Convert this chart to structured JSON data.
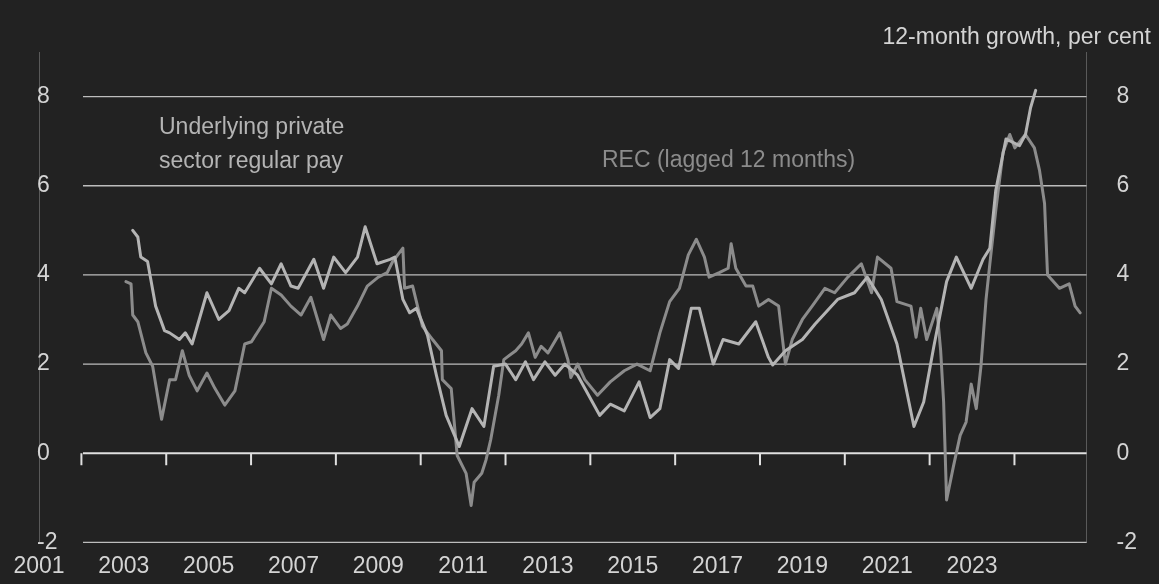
{
  "chart_data": {
    "type": "line",
    "y2label": "12-month growth, per cent",
    "xlim": [
      2001,
      2025.7
    ],
    "ylim": [
      -2,
      9
    ],
    "yticks": [
      -2,
      0,
      2,
      4,
      6,
      8
    ],
    "y2lim": [
      -2,
      9
    ],
    "y2ticks": [
      -2,
      0,
      2,
      4,
      6,
      8
    ],
    "xticks": [
      2001,
      {
        "value": 2002,
        "label": null
      },
      2003,
      {
        "value": 2004,
        "label": null
      },
      2005,
      {
        "value": 2006,
        "label": null
      },
      2007,
      {
        "value": 2008,
        "label": null
      },
      2009,
      {
        "value": 2010,
        "label": null
      },
      2011,
      {
        "value": 2012,
        "label": null
      },
      2013,
      {
        "value": 2014,
        "label": null
      },
      2015,
      {
        "value": 2016,
        "label": null
      },
      2017,
      {
        "value": 2018,
        "label": null
      },
      2019,
      {
        "value": 2020,
        "label": null
      },
      2021,
      {
        "value": 2022,
        "label": null
      },
      2023,
      {
        "value": 2024,
        "label": null
      }
    ],
    "grid": "y",
    "marker": "none",
    "line_style": "solid",
    "series": [
      {
        "name": "Underlying private sector regular pay",
        "color": "#b4b4b4",
        "x": [
          2003.21,
          2003.33,
          2003.4,
          2003.56,
          2003.75,
          2003.96,
          2004.08,
          2004.31,
          2004.45,
          2004.61,
          2004.96,
          2005.24,
          2005.48,
          2005.71,
          2005.85,
          2006.2,
          2006.48,
          2006.71,
          2006.94,
          2007.11,
          2007.48,
          2007.71,
          2007.95,
          2008.23,
          2008.51,
          2008.69,
          2008.97,
          2009.28,
          2009.39,
          2009.58,
          2009.74,
          2009.9,
          2010.16,
          2010.37,
          2010.6,
          2010.91,
          2011.21,
          2011.49,
          2011.72,
          2012.0,
          2012.24,
          2012.47,
          2012.66,
          2012.93,
          2013.17,
          2013.4,
          2013.7,
          2014.22,
          2014.47,
          2014.8,
          2015.15,
          2015.41,
          2015.64,
          2015.87,
          2016.08,
          2016.38,
          2016.57,
          2016.9,
          2017.13,
          2017.5,
          2017.9,
          2018.2,
          2018.3,
          2018.6,
          2019.0,
          2019.3,
          2019.83,
          2020.23,
          2020.53,
          2020.86,
          2021.23,
          2021.63,
          2021.86,
          2022.1,
          2022.4,
          2022.63,
          2022.98,
          2023.26,
          2023.42,
          2023.56,
          2023.8,
          2024.12,
          2024.26,
          2024.38,
          2024.5
        ],
        "values": [
          5.0,
          4.85,
          4.4,
          4.3,
          3.3,
          2.75,
          2.7,
          2.55,
          2.7,
          2.45,
          3.6,
          3.0,
          3.2,
          3.7,
          3.6,
          4.15,
          3.8,
          4.25,
          3.75,
          3.7,
          4.35,
          3.7,
          4.4,
          4.05,
          4.4,
          5.08,
          4.25,
          4.35,
          4.4,
          3.45,
          3.15,
          3.25,
          2.65,
          1.75,
          0.85,
          0.15,
          1.0,
          0.6,
          1.95,
          2.0,
          1.65,
          2.05,
          1.65,
          2.05,
          1.75,
          2.0,
          1.75,
          0.85,
          1.1,
          0.95,
          1.6,
          0.8,
          1.0,
          2.1,
          1.9,
          3.25,
          3.25,
          2.0,
          2.55,
          2.45,
          2.95,
          2.15,
          1.98,
          2.3,
          2.55,
          2.9,
          3.45,
          3.6,
          3.95,
          3.45,
          2.45,
          0.6,
          1.15,
          2.4,
          3.85,
          4.4,
          3.7,
          4.35,
          4.6,
          5.9,
          7.05,
          6.9,
          7.15,
          7.75,
          8.14
        ]
      },
      {
        "name": "REC (lagged 12 months)",
        "color": "#8c8c8c",
        "x": [
          2003.05,
          2003.17,
          2003.21,
          2003.33,
          2003.52,
          2003.68,
          2003.89,
          2004.08,
          2004.22,
          2004.38,
          2004.54,
          2004.73,
          2004.96,
          2005.15,
          2005.38,
          2005.62,
          2005.85,
          2006.01,
          2006.31,
          2006.48,
          2006.71,
          2006.94,
          2007.18,
          2007.41,
          2007.71,
          2007.88,
          2008.11,
          2008.27,
          2008.51,
          2008.74,
          2009.0,
          2009.21,
          2009.34,
          2009.58,
          2009.62,
          2009.81,
          2010.04,
          2010.28,
          2010.49,
          2010.51,
          2010.72,
          2010.86,
          2011.07,
          2011.19,
          2011.26,
          2011.44,
          2011.54,
          2011.65,
          2011.84,
          2011.96,
          2012.24,
          2012.38,
          2012.54,
          2012.7,
          2012.84,
          2013.0,
          2013.28,
          2013.47,
          2013.54,
          2013.7,
          2013.87,
          2014.17,
          2014.47,
          2014.8,
          2015.1,
          2015.41,
          2015.64,
          2015.87,
          2016.1,
          2016.31,
          2016.5,
          2016.69,
          2016.8,
          2017.04,
          2017.25,
          2017.32,
          2017.43,
          2017.67,
          2017.83,
          2017.97,
          2018.2,
          2018.44,
          2018.6,
          2018.76,
          2019.0,
          2019.23,
          2019.53,
          2019.76,
          2020.07,
          2020.39,
          2020.63,
          2020.77,
          2021.09,
          2021.23,
          2021.56,
          2021.68,
          2021.79,
          2021.93,
          2022.17,
          2022.26,
          2022.33,
          2022.4,
          2022.56,
          2022.72,
          2022.86,
          2022.98,
          2023.1,
          2023.21,
          2023.33,
          2023.42,
          2023.56,
          2023.73,
          2023.89,
          2024.01,
          2024.26,
          2024.47,
          2024.59,
          2024.71,
          2024.78,
          2025.06,
          2025.29,
          2025.43,
          2025.55
        ],
        "values": [
          3.85,
          3.8,
          3.1,
          2.95,
          2.25,
          1.95,
          0.76,
          1.65,
          1.65,
          2.3,
          1.75,
          1.4,
          1.8,
          1.45,
          1.08,
          1.4,
          2.45,
          2.5,
          2.95,
          3.7,
          3.55,
          3.3,
          3.1,
          3.5,
          2.55,
          3.1,
          2.8,
          2.9,
          3.3,
          3.75,
          3.95,
          4.05,
          4.3,
          4.6,
          3.7,
          3.75,
          2.85,
          2.55,
          2.3,
          1.65,
          1.45,
          -0.05,
          -0.45,
          -1.17,
          -0.65,
          -0.45,
          -0.15,
          0.3,
          1.3,
          2.1,
          2.3,
          2.45,
          2.7,
          2.15,
          2.4,
          2.25,
          2.7,
          2.1,
          1.7,
          2.0,
          1.65,
          1.3,
          1.6,
          1.85,
          2.0,
          1.85,
          2.7,
          3.4,
          3.7,
          4.45,
          4.8,
          4.4,
          3.95,
          4.05,
          4.15,
          4.7,
          4.15,
          3.75,
          3.75,
          3.3,
          3.45,
          3.3,
          2.0,
          2.55,
          3.0,
          3.3,
          3.7,
          3.6,
          3.95,
          4.25,
          3.6,
          4.4,
          4.15,
          3.4,
          3.3,
          2.6,
          3.25,
          2.55,
          3.25,
          2.3,
          1.15,
          -1.05,
          -0.3,
          0.4,
          0.7,
          1.55,
          1.0,
          1.95,
          3.45,
          4.25,
          5.45,
          6.75,
          7.15,
          6.85,
          7.15,
          6.85,
          6.35,
          5.6,
          4.0,
          3.7,
          3.8,
          3.3,
          3.15
        ]
      }
    ]
  }
}
